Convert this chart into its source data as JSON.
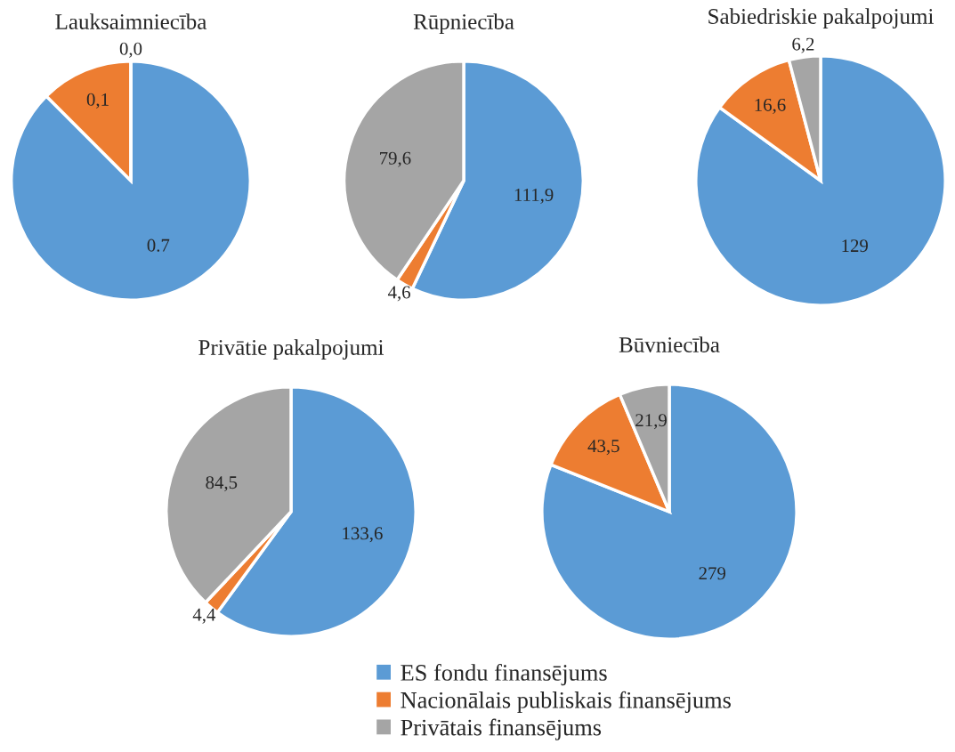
{
  "chart_data": [
    {
      "type": "pie",
      "title": "Lauksaimniecība",
      "categories": [
        "ES fondu finansējums",
        "Nacionālais publiskais finansējums",
        "Privātais finansējums"
      ],
      "values": [
        0.7,
        0.1,
        0.0
      ],
      "value_labels": [
        "0.7",
        "0,1",
        "0,0"
      ],
      "colors": [
        "#5b9bd5",
        "#ed7d31",
        "#a5a5a5"
      ],
      "legend": "bottom"
    },
    {
      "type": "pie",
      "title": "Rūpniecība",
      "values": [
        111.9,
        4.6,
        79.6
      ],
      "value_labels": [
        "111,9",
        "4,6",
        "79,6"
      ],
      "colors": [
        "#5b9bd5",
        "#ed7d31",
        "#a5a5a5"
      ]
    },
    {
      "type": "pie",
      "title": "Sabiedriskie pakalpojumi",
      "values": [
        129,
        16.6,
        6.2
      ],
      "value_labels": [
        "129",
        "16,6",
        "6,2"
      ],
      "colors": [
        "#5b9bd5",
        "#ed7d31",
        "#a5a5a5"
      ]
    },
    {
      "type": "pie",
      "title": "Privātie pakalpojumi",
      "values": [
        133.6,
        4.4,
        84.5
      ],
      "value_labels": [
        "133,6",
        "4,4",
        "84,5"
      ],
      "colors": [
        "#5b9bd5",
        "#ed7d31",
        "#a5a5a5"
      ]
    },
    {
      "type": "pie",
      "title": "Būvniecība",
      "values": [
        279,
        43.5,
        21.9
      ],
      "value_labels": [
        "279",
        "43,5",
        "21,9"
      ],
      "colors": [
        "#5b9bd5",
        "#ed7d31",
        "#a5a5a5"
      ]
    }
  ]
}
